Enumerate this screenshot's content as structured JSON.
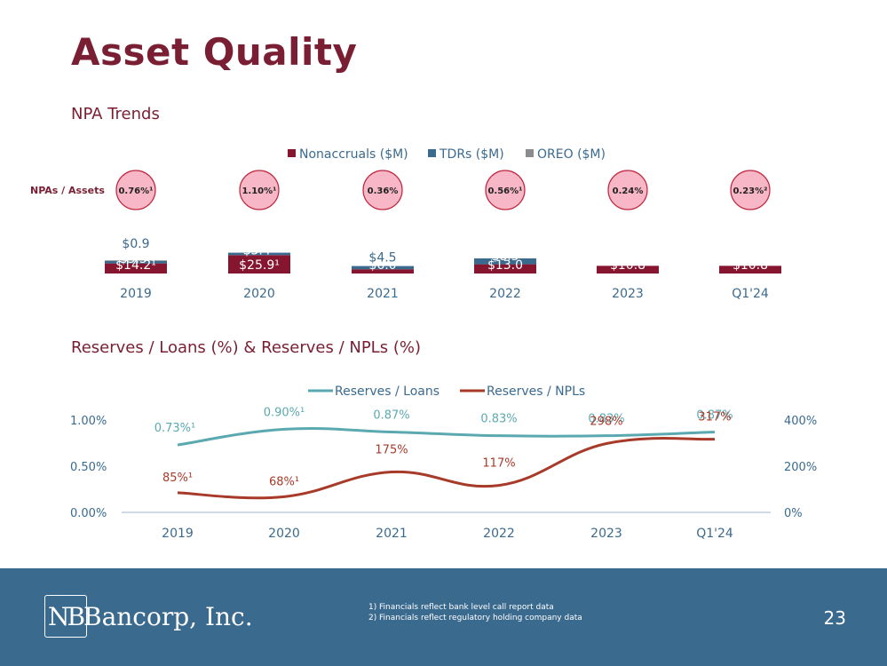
{
  "title": "Asset Quality",
  "colors": {
    "nonaccrual": "#86152f",
    "tdr": "#3b6a8f",
    "oreo": "#8c8c8c",
    "bubble_fill": "#f7b7c7",
    "bubble_stroke": "#c0273f",
    "reserves_loans": "#5ba9b0",
    "reserves_npls": "#a83a2a",
    "axis_text": "#3b6a8f"
  },
  "npa": {
    "section_title": "NPA Trends",
    "row_label": "NPAs / Assets",
    "legend": [
      "Nonaccruals ($M)",
      "TDRs ($M)",
      "OREO ($M)"
    ],
    "ratios": [
      "0.76%¹",
      "1.10%¹",
      "0.36%",
      "0.56%¹",
      "0.24%",
      "0.23%²"
    ]
  },
  "reserves": {
    "section_title": "Reserves / Loans (%) & Reserves / NPLs (%)",
    "legend": [
      "Reserves / Loans",
      "Reserves / NPLs"
    ],
    "left_ticks": [
      "0.00%",
      "0.50%",
      "1.00%"
    ],
    "right_ticks": [
      "0%",
      "200%",
      "400%"
    ]
  },
  "chart_data": [
    {
      "type": "bar",
      "stacked": true,
      "categories": [
        "2019",
        "2020",
        "2021",
        "2022",
        "2023",
        "Q1'24"
      ],
      "series": [
        {
          "name": "Nonaccruals ($M)",
          "values": [
            14.2,
            25.9,
            6.0,
            13.0,
            10.8,
            10.8
          ],
          "labels": [
            "$14.2¹",
            "$25.9¹",
            "$6.0",
            "$13.0",
            "$10.8",
            "$10.8"
          ]
        },
        {
          "name": "TDRs ($M)",
          "values": [
            3.5,
            3.4,
            4.5,
            8.3,
            0,
            0
          ],
          "labels": [
            "$3.5¹",
            "$3.4¹",
            "$4.5",
            "$8.3",
            "",
            ""
          ]
        },
        {
          "name": "OREO ($M)",
          "values": [
            0.9,
            0,
            0,
            0,
            0,
            0
          ],
          "labels": [
            "$0.9",
            "",
            "",
            "",
            "",
            ""
          ]
        }
      ]
    },
    {
      "type": "line",
      "categories": [
        "2019",
        "2020",
        "2021",
        "2022",
        "2023",
        "Q1'24"
      ],
      "y_left_range": [
        0,
        1.0
      ],
      "y_right_range": [
        0,
        400
      ],
      "series": [
        {
          "name": "Reserves / Loans",
          "axis": "left",
          "values": [
            0.73,
            0.9,
            0.87,
            0.83,
            0.83,
            0.87
          ],
          "labels": [
            "0.73%¹",
            "0.90%¹",
            "0.87%",
            "0.83%",
            "0.83%",
            "0.87%"
          ]
        },
        {
          "name": "Reserves / NPLs",
          "axis": "right",
          "values": [
            85,
            68,
            175,
            117,
            298,
            317
          ],
          "labels": [
            "85%¹",
            "68%¹",
            "175%",
            "117%",
            "298%",
            "317%"
          ]
        }
      ]
    }
  ],
  "footer": {
    "logo_mark": "NB",
    "logo_text": "Bancorp, Inc.",
    "notes": [
      {
        "num": "1)",
        "text": "Financials reflect bank level call report data"
      },
      {
        "num": "2)",
        "text": "Financials reflect regulatory holding company data"
      }
    ],
    "page_number": "23"
  }
}
